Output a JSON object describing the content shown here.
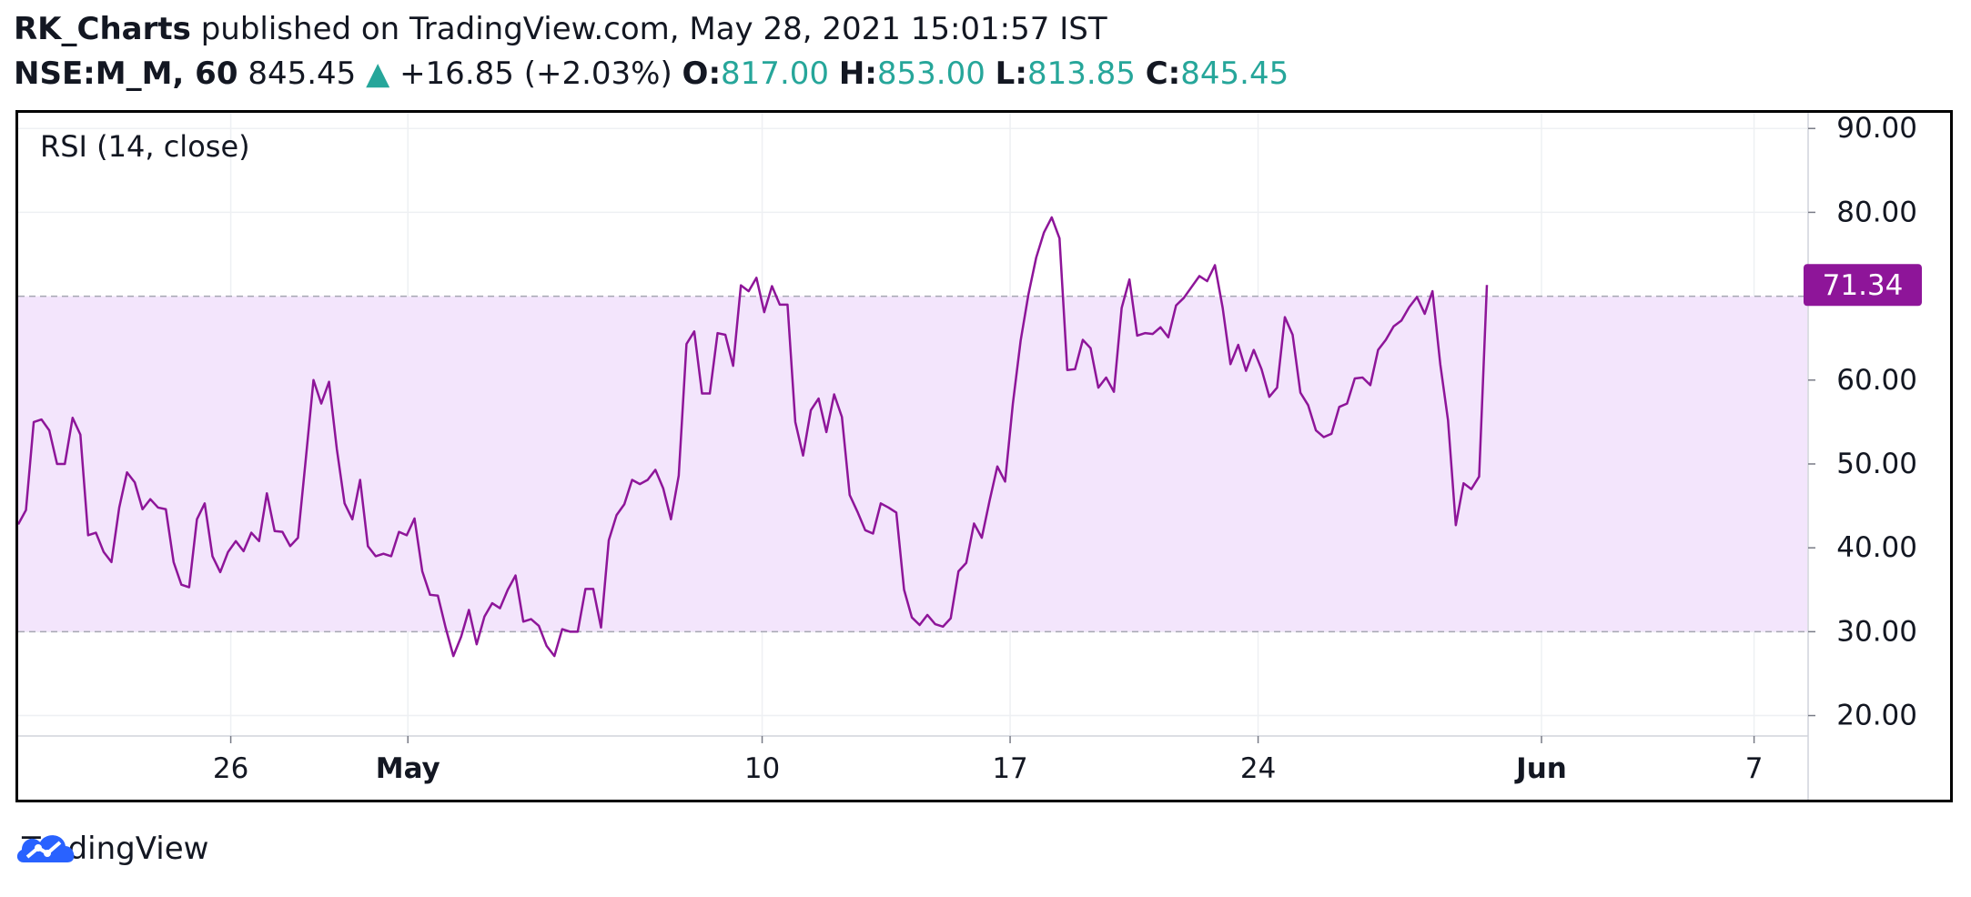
{
  "header": {
    "author": "RK_Charts",
    "published_text": "published on TradingView.com, May 28, 2021 15:01:57 IST",
    "symbol": "NSE:M_M, 60",
    "price": "845.45",
    "change": "+16.85 (+2.03%)",
    "o_label": "O:",
    "o_value": "817.00",
    "h_label": "H:",
    "h_value": "853.00",
    "l_label": "L:",
    "l_value": "813.85",
    "c_label": "C:",
    "c_value": "845.45"
  },
  "colors": {
    "line": "#8e1599",
    "band_fill": "#f3e5fc",
    "accent_green": "#26a69a"
  },
  "brand": {
    "name": "TradingView"
  },
  "chart_data": {
    "type": "line",
    "indicator_label": "RSI (14, close)",
    "y_ticks": [
      "90.00",
      "80.00",
      "60.00",
      "50.00",
      "40.00",
      "30.00",
      "20.00"
    ],
    "y_tick_values": [
      90,
      80,
      60,
      50,
      40,
      30,
      20
    ],
    "x_ticks": [
      {
        "label": "26",
        "pos": 26
      },
      {
        "label": "May",
        "pos": 31,
        "bold": true
      },
      {
        "label": "10",
        "pos": 41
      },
      {
        "label": "17",
        "pos": 48
      },
      {
        "label": "24",
        "pos": 55
      },
      {
        "label": "Jun",
        "pos": 63,
        "bold": true
      },
      {
        "label": "7",
        "pos": 69
      }
    ],
    "ylim": [
      18.0,
      91.0
    ],
    "xlim": [
      20.0,
      70.5
    ],
    "band": [
      30,
      70
    ],
    "last_value_label": "71.34",
    "last_value": 71.34,
    "values": [
      42.8,
      44.5,
      55,
      55.3,
      54,
      50,
      50,
      55.5,
      53.5,
      41.5,
      41.8,
      39.5,
      38.3,
      44.8,
      49,
      47.8,
      44.6,
      45.8,
      44.8,
      44.6,
      38.3,
      35.6,
      35.3,
      43.4,
      45.3,
      39,
      37.1,
      39.5,
      40.8,
      39.6,
      41.8,
      40.8,
      46.5,
      42,
      41.9,
      40.2,
      41.2,
      50.5,
      60,
      57.2,
      59.8,
      51.8,
      45.3,
      43.4,
      48.1,
      40.2,
      39,
      39.3,
      39,
      41.9,
      41.5,
      43.5,
      37.2,
      34.4,
      34.3,
      30.5,
      27.1,
      29.4,
      32.6,
      28.5,
      31.8,
      33.4,
      32.8,
      35,
      36.7,
      31.2,
      31.5,
      30.7,
      28.3,
      27.1,
      30.3,
      30,
      30,
      35.1,
      35.1,
      30.5,
      40.9,
      43.9,
      45.2,
      48.1,
      47.6,
      48.1,
      49.3,
      47.1,
      43.4,
      48.6,
      64.3,
      65.8,
      58.4,
      58.4,
      65.6,
      65.4,
      61.7,
      71.3,
      70.6,
      72.2,
      68.1,
      71.2,
      69,
      69,
      55,
      51,
      56.4,
      57.8,
      53.8,
      58.3,
      55.6,
      46.3,
      44.3,
      42.1,
      41.7,
      45.3,
      44.8,
      44.2,
      35,
      31.7,
      30.8,
      32,
      30.9,
      30.6,
      31.6,
      37.2,
      38.2,
      42.9,
      41.2,
      45.6,
      49.7,
      47.9,
      57.2,
      64.7,
      70.2,
      74.6,
      77.6,
      79.4,
      76.9,
      61.2,
      61.3,
      64.8,
      63.8,
      59.1,
      60.3,
      58.6,
      68.6,
      72,
      65.3,
      65.6,
      65.5,
      66.3,
      65.1,
      68.9,
      69.8,
      71.1,
      72.4,
      71.8,
      73.7,
      68.6,
      61.9,
      64.2,
      61.1,
      63.6,
      61.3,
      58,
      59.1,
      67.5,
      65.4,
      58.5,
      57,
      54,
      53.2,
      53.6,
      56.8,
      57.2,
      60.2,
      60.3,
      59.4,
      63.6,
      64.8,
      66.4,
      67.1,
      68.7,
      69.9,
      67.9,
      70.6,
      61.9,
      55.2,
      42.7,
      47.7,
      47,
      48.5,
      71.34
    ]
  }
}
